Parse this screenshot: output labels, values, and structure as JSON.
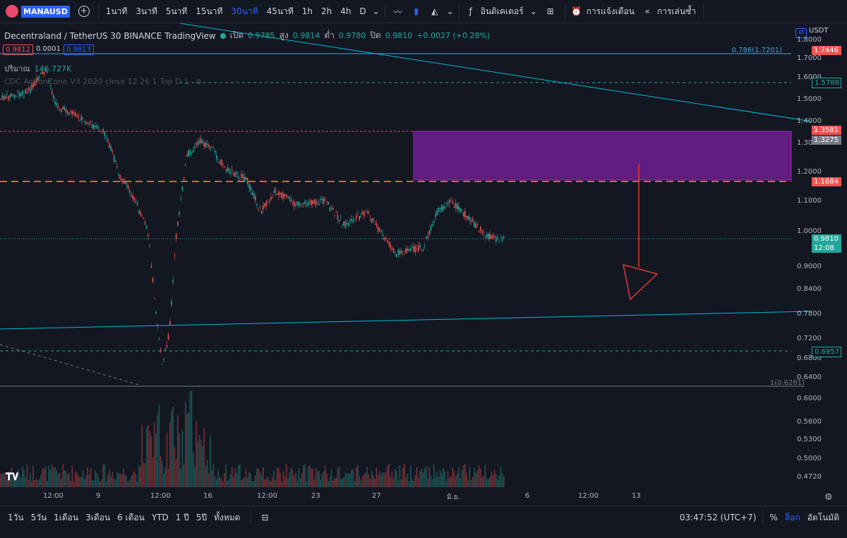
{
  "topbar": {
    "symbol": "MANAUSD",
    "intervals": [
      "1นาที",
      "3นาที",
      "5นาที",
      "15นาที",
      "30นาที",
      "45นาที",
      "1h",
      "2h",
      "4h",
      "D"
    ],
    "active_interval": "30นาที",
    "indicators_label": "อินดิเคเตอร์",
    "alerts_label": "การแจ้งเตือน",
    "replay_label": "การเล่นซ้ำ"
  },
  "legend": {
    "title": "Decentraland / TetherUS  30  BINANCE  TradingView",
    "open_label": "เปิด",
    "open": "0.9785",
    "high_label": "สูง",
    "high": "0.9814",
    "low_label": "ต่ำ",
    "low": "0.9780",
    "close_label": "ปิด",
    "close": "0.9810",
    "change": "+0.0027 (+0.28%)",
    "bid": "0.9812",
    "spread": "0.0001",
    "ask": "0.9813",
    "volume_label": "ปริมาณ",
    "volume": "146.727K",
    "indicator": "CDC ActionZone V3 2020 close 12 26 1 Top D 1"
  },
  "axis": {
    "currency": "USDT",
    "ticks": [
      "1.8000",
      "1.7000",
      "1.6000",
      "1.5000",
      "1.4000",
      "1.3000",
      "1.2000",
      "1.1000",
      "1.0000",
      "0.9000",
      "0.8400",
      "0.7800",
      "0.7200",
      "0.6800",
      "0.6400",
      "0.6000",
      "0.5600",
      "0.5300",
      "0.5000",
      "0.4720"
    ],
    "x_ticks": [
      "12:00",
      "9",
      "12:00",
      "16",
      "12:00",
      "23",
      "27",
      "มิ.ย.",
      "6",
      "12:00",
      "13"
    ]
  },
  "price_tags": {
    "fib_0786": "0.786(1.7201)",
    "fib_1": "1(0.6261)",
    "t1": "1.7446",
    "t2": "1.5788",
    "t3": "1.3581",
    "t4": "1.3275",
    "t5": "1.1684",
    "last": "0.9810",
    "countdown": "12:08",
    "t6": "0.6957"
  },
  "colors": {
    "bg": "#131722",
    "up": "#26a69a",
    "down": "#ef5350",
    "zone": "#7b1fa2",
    "accent": "#2962ff",
    "trend": "#00bcd4"
  },
  "bottombar": {
    "ranges": [
      "1วัน",
      "5วัน",
      "1เดือน",
      "3เดือน",
      "6 เดือน",
      "YTD",
      "1 ปี",
      "5ปี",
      "ทั้งหมด"
    ],
    "time": "03:47:52 (UTC+7)",
    "percent": "%",
    "log": "ล็อก",
    "auto": "อัตโนมัติ"
  }
}
